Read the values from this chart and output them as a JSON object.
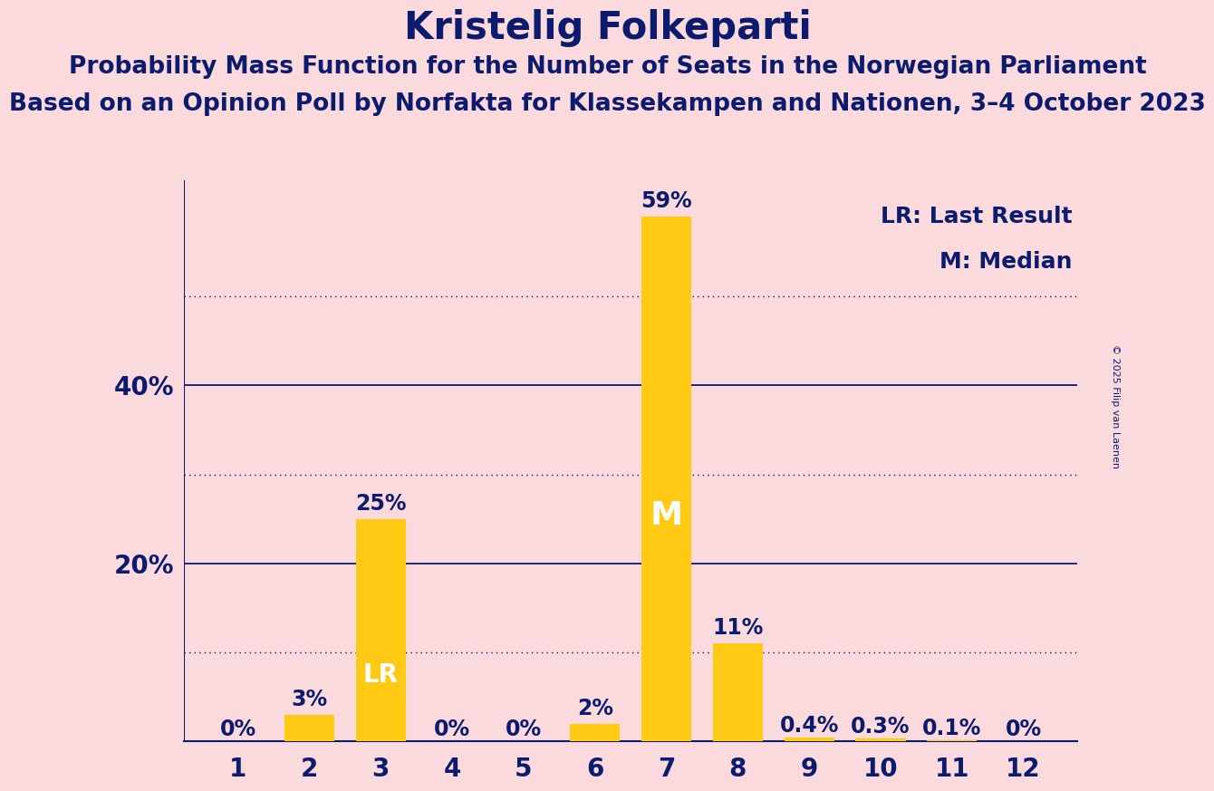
{
  "title": "Kristelig Folkeparti",
  "subtitle1": "Probability Mass Function for the Number of Seats in the Norwegian Parliament",
  "subtitle2": "Based on an Opinion Poll by Norfakta for Klassekampen and Nationen, 3–4 October 2023",
  "copyright": "© 2025 Filip van Laenen",
  "seats": [
    1,
    2,
    3,
    4,
    5,
    6,
    7,
    8,
    9,
    10,
    11,
    12
  ],
  "probabilities": [
    0.0,
    3.0,
    25.0,
    0.0,
    0.0,
    2.0,
    59.0,
    11.0,
    0.4,
    0.3,
    0.1,
    0.0
  ],
  "bar_labels": [
    "0%",
    "3%",
    "25%",
    "0%",
    "0%",
    "2%",
    "59%",
    "11%",
    "0.4%",
    "0.3%",
    "0.1%",
    "0%"
  ],
  "bar_color": "#FFC914",
  "background_color": "#FADADD",
  "text_color": "#0D1B6E",
  "last_result_seat": 3,
  "median_seat": 7,
  "lr_label": "LR",
  "m_label": "M",
  "legend_lr": "LR: Last Result",
  "legend_m": "M: Median",
  "ylim": [
    0,
    63
  ],
  "yticks": [
    20,
    40
  ],
  "ytick_labels": [
    "20%",
    "40%"
  ],
  "solid_gridlines": [
    20,
    40
  ],
  "dotted_gridlines": [
    10,
    30,
    50
  ],
  "title_fontsize": 30,
  "subtitle1_fontsize": 19,
  "subtitle2_fontsize": 19,
  "axis_tick_fontsize": 20,
  "bar_label_fontsize": 17,
  "bar_inlabel_lr_fontsize": 20,
  "bar_inlabel_m_fontsize": 26,
  "legend_fontsize": 18
}
